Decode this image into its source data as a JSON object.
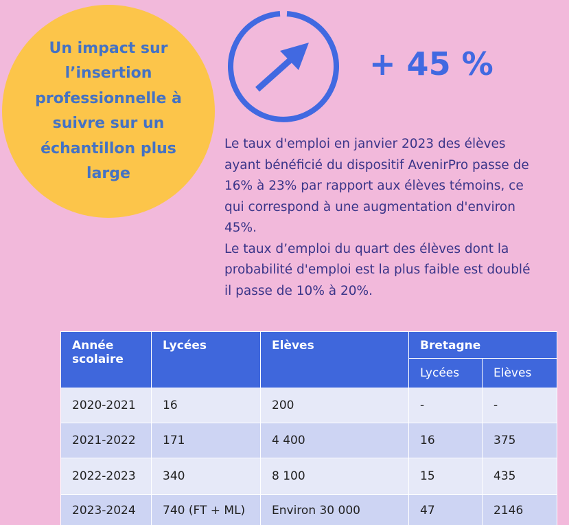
{
  "bubble": {
    "lines": [
      "Un impact sur",
      "l’insertion",
      "professionnelle à",
      "suivre sur un",
      "échantillon plus",
      "large"
    ]
  },
  "stat": "+ 45 %",
  "paragraphs": [
    [
      "Le taux d'emploi en janvier 2023 des élèves",
      "ayant bénéficié du dispositif AvenirPro passe de",
      "16% à 23% par rapport aux élèves témoins, ce",
      "qui correspond à une augmentation d'environ",
      "45%."
    ],
    [
      "Le taux d’emploi du quart des élèves dont la",
      "probabilité d'emploi est la plus faible est doublé",
      "il passe de 10% à 20%."
    ]
  ],
  "table": {
    "header": [
      "Année scolaire",
      "Lycées",
      "Elèves",
      "Bretagne"
    ],
    "subheader": [
      "Lycées",
      "Elèves"
    ],
    "rows": [
      [
        "2020-2021",
        "16",
        "200",
        "-",
        "-"
      ],
      [
        "2021-2022",
        "171",
        "4 400",
        "16",
        "375"
      ],
      [
        "2022-2023",
        "340",
        "8 100",
        "15",
        "435"
      ],
      [
        "2023-2024",
        "740 (FT + ML)",
        "Environ 30 000",
        "47",
        "2146"
      ]
    ]
  }
}
